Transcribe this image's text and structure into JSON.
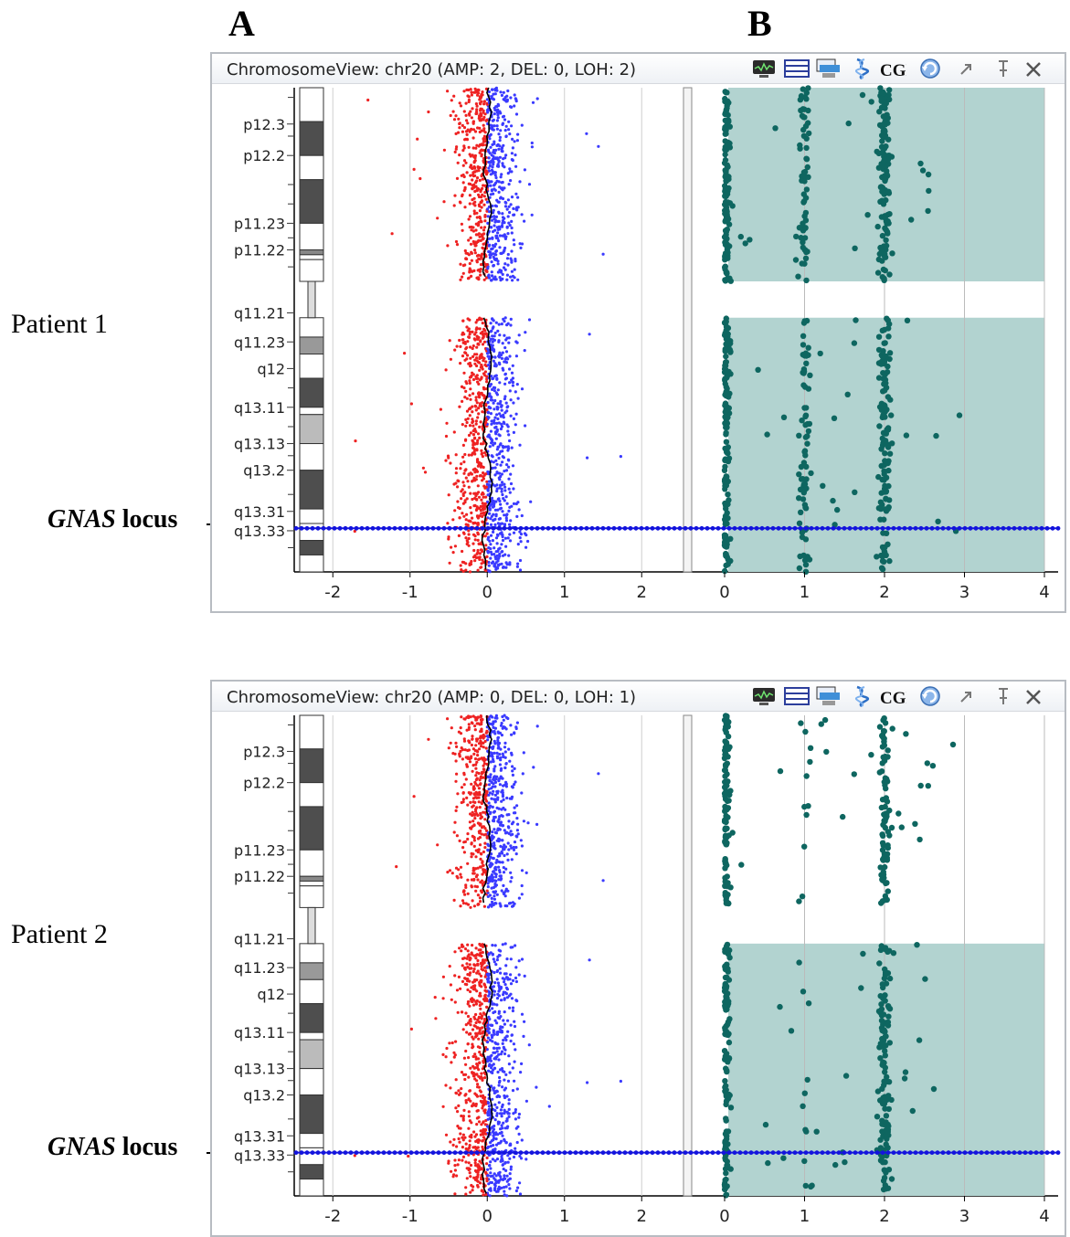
{
  "figure": {
    "column_a_label": "A",
    "column_b_label": "B",
    "gnas_label_italic": "GNAS",
    "gnas_label_rest": " locus"
  },
  "colors": {
    "log_ratio_negative": "#ee2222",
    "log_ratio_positive": "#3a3aff",
    "trend_line": "#000000",
    "allele_points": "#0e6660",
    "loh_region": "#b2d3d0",
    "marker_line": "#1414dd",
    "chromosome_dark": "#4e4e4e"
  },
  "toolbar_icons": [
    "waveform-icon",
    "row-layout-icon",
    "chart-settings-icon",
    "snp-helix-icon",
    "cgh-icon",
    "refresh-icon",
    "float-window-icon",
    "pin-icon",
    "close-icon"
  ],
  "toolbar_cgh_text": "CGH",
  "panels": [
    {
      "patient_label": "Patient 1",
      "title": "ChromosomeView: chr20 (AMP: 2, DEL: 0, LOH: 2)",
      "loh_regions": [
        [
          0,
          2,
          "p-arm"
        ],
        [
          0,
          2,
          "q-arm"
        ]
      ],
      "bafs_extra": [
        1.0,
        2.0,
        3.0
      ]
    },
    {
      "patient_label": "Patient 2",
      "title": "ChromosomeView: chr20 (AMP: 0, DEL: 0, LOH: 1)",
      "loh_regions": [
        [
          0,
          2,
          "q-arm"
        ]
      ],
      "bafs_extra": [
        1.0,
        2.0
      ]
    }
  ],
  "chart_data": [
    {
      "type": "scatter",
      "title": "",
      "xlabel": "",
      "ylabel": "",
      "x_ticks": [
        "-2",
        "-1",
        "0",
        "1",
        "2"
      ],
      "xlim": [
        -2.5,
        2.5
      ],
      "band_labels": [
        "p12.3",
        "p12.2",
        "p11.23",
        "p11.22",
        "q11.21",
        "q11.23",
        "q12",
        "q13.11",
        "q13.13",
        "q13.2",
        "q13.31",
        "q13.33"
      ],
      "series": [
        {
          "values": []
        },
        {
          "values": []
        }
      ],
      "note_marker": "GNAS locus"
    },
    {
      "type": "scatter",
      "title": "",
      "xlabel": "",
      "ylabel": "",
      "x_ticks": [
        "0",
        "1",
        "2",
        "3",
        "4"
      ],
      "xlim": [
        0,
        4
      ],
      "series": [
        {
          "values": []
        }
      ]
    }
  ]
}
